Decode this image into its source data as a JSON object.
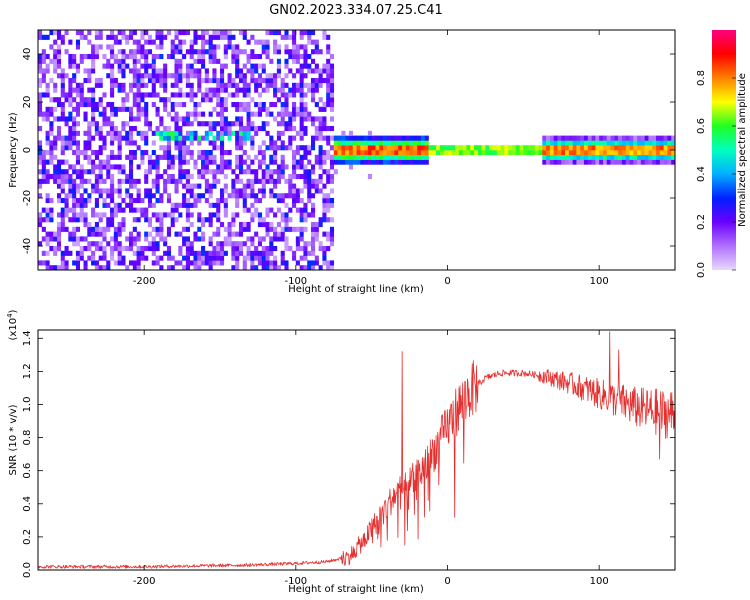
{
  "title": "GN02.2023.334.07.25.C41",
  "chart_data": [
    {
      "type": "heatmap",
      "title": "GN02.2023.334.07.25.C41",
      "xlabel": "Height of straight line (km)",
      "ylabel": "Frequency (Hz)",
      "xlim": [
        -270,
        150
      ],
      "ylim": [
        -50,
        50
      ],
      "x_ticks": [
        -200,
        -100,
        0,
        100
      ],
      "x_tick_labels": [
        "-200",
        "-100",
        "0",
        "100"
      ],
      "y_ticks": [
        -40,
        -20,
        0,
        20,
        40
      ],
      "y_tick_labels": [
        "-40",
        "-20",
        "0",
        "20",
        "40"
      ],
      "colorbar": {
        "label": "Normalized spectral amplitude",
        "range": [
          0,
          1
        ],
        "ticks": [
          0.0,
          0.2,
          0.4,
          0.6,
          0.8
        ],
        "tick_labels": [
          "0.0",
          "0.2",
          "0.4",
          "0.6",
          "0.8"
        ],
        "colors": [
          "#e8d8ff",
          "#b070ff",
          "#6a00ff",
          "#0020ff",
          "#00b0ff",
          "#00ffc0",
          "#20ff20",
          "#ffff00",
          "#ff8000",
          "#ff0000",
          "#ff0080"
        ]
      },
      "description_features": {
        "noise_region_x": [
          -270,
          -75
        ],
        "band_center_hz": 0,
        "band_segments": [
          {
            "x": [
              -75,
              -15
            ],
            "half_width_hz": 5
          },
          {
            "x": [
              -15,
              60
            ],
            "half_width_hz": 1.5
          },
          {
            "x": [
              60,
              150
            ],
            "half_width_hz": 4
          }
        ]
      },
      "grid": false
    },
    {
      "type": "line",
      "xlabel": "Height of straight line (km)",
      "ylabel": "SNR (10 * v/v)",
      "y_multiplier": "(x10",
      "y_multiplier_exp": "4",
      "y_multiplier_close": ")",
      "xlim": [
        -270,
        150
      ],
      "ylim": [
        0,
        1.45
      ],
      "x_ticks": [
        -200,
        -100,
        0,
        100
      ],
      "x_tick_labels": [
        "-200",
        "-100",
        "0",
        "100"
      ],
      "y_ticks": [
        0.0,
        0.2,
        0.4,
        0.6,
        0.8,
        1.0,
        1.2,
        1.4
      ],
      "y_tick_labels": [
        "0.0",
        "0.2",
        "0.4",
        "0.6",
        "0.8",
        "1.0",
        "1.2",
        "1.4"
      ],
      "series_color": "#e53030",
      "profile": [
        [
          -270,
          0.02
        ],
        [
          -200,
          0.02
        ],
        [
          -130,
          0.03
        ],
        [
          -100,
          0.04
        ],
        [
          -80,
          0.05
        ],
        [
          -65,
          0.08
        ],
        [
          -55,
          0.18
        ],
        [
          -45,
          0.32
        ],
        [
          -35,
          0.45
        ],
        [
          -25,
          0.52
        ],
        [
          -15,
          0.62
        ],
        [
          -5,
          0.78
        ],
        [
          5,
          0.95
        ],
        [
          15,
          1.08
        ],
        [
          25,
          1.16
        ],
        [
          35,
          1.19
        ],
        [
          50,
          1.19
        ],
        [
          65,
          1.17
        ],
        [
          80,
          1.13
        ],
        [
          95,
          1.08
        ],
        [
          110,
          1.03
        ],
        [
          125,
          0.98
        ],
        [
          140,
          0.95
        ],
        [
          150,
          0.94
        ]
      ],
      "spikes": [
        {
          "x": -30,
          "y": 1.32
        },
        {
          "x": -28,
          "y": 0.15
        },
        {
          "x": 107,
          "y": 1.44
        },
        {
          "x": 113,
          "y": 1.33
        },
        {
          "x": 140,
          "y": 0.67
        }
      ],
      "grid": false
    }
  ]
}
